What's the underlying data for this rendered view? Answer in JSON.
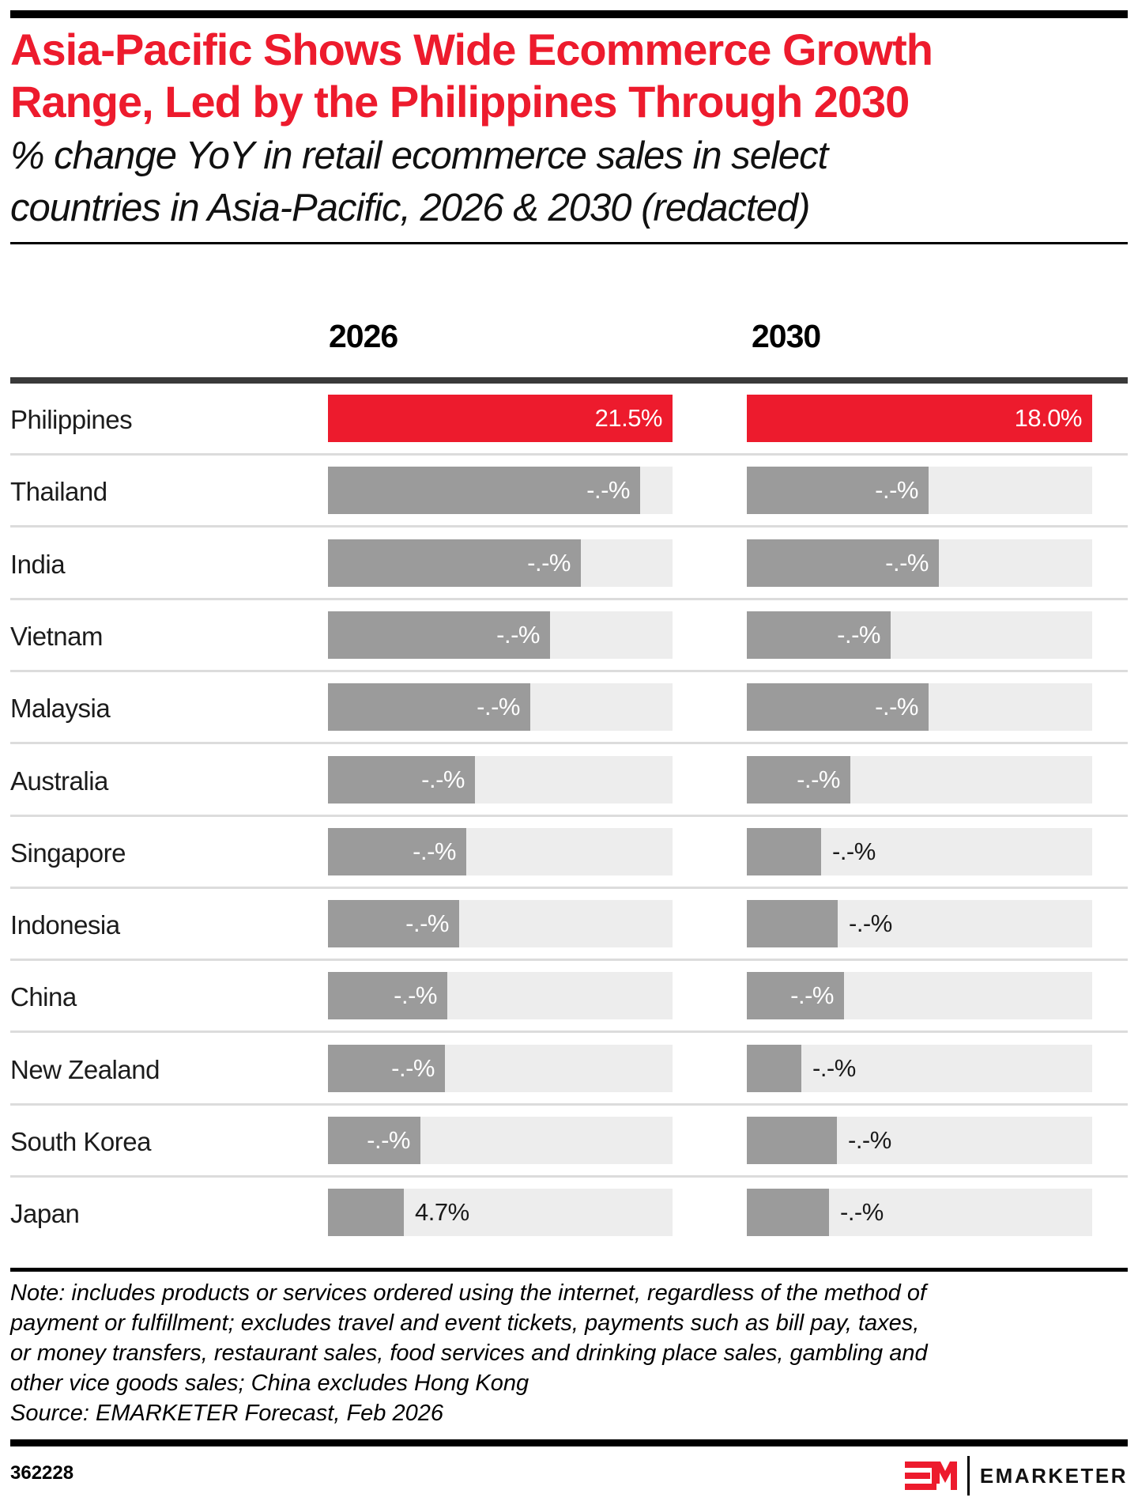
{
  "colors": {
    "accent_red": "#ed1b2d",
    "bar_gray": "#9b9b9b",
    "track_gray": "#ededed",
    "divider_gray": "#dcdcdc",
    "table_rule": "#3a3a3a",
    "black": "#000000"
  },
  "chart_data": {
    "type": "bar",
    "orientation": "horizontal",
    "title_lines": [
      "Asia-Pacific Shows Wide Ecommerce Growth",
      "Range, Led by the Philippines Through 2030"
    ],
    "subtitle_lines": [
      "% change YoY in retail ecommerce sales in select",
      "countries in Asia-Pacific, 2026 & 2030 (redacted)"
    ],
    "columns": [
      "2026",
      "2030"
    ],
    "redacted_label": "-.-%",
    "legend": "none",
    "note": "most values are redacted; bar_fraction is the bar length relative to the full column track (Philippines fills the track in both columns)",
    "rows": [
      {
        "country": "Philippines",
        "y2026": {
          "label": "21.5%",
          "value": 21.5,
          "bar_fraction": 1.0,
          "highlight": true,
          "label_inside": true
        },
        "y2030": {
          "label": "18.0%",
          "value": 18.0,
          "bar_fraction": 1.0,
          "highlight": true,
          "label_inside": true
        }
      },
      {
        "country": "Thailand",
        "y2026": {
          "label": "-.-%",
          "value": null,
          "bar_fraction": 0.906,
          "highlight": false,
          "label_inside": true
        },
        "y2030": {
          "label": "-.-%",
          "value": null,
          "bar_fraction": 0.526,
          "highlight": false,
          "label_inside": true
        }
      },
      {
        "country": "India",
        "y2026": {
          "label": "-.-%",
          "value": null,
          "bar_fraction": 0.734,
          "highlight": false,
          "label_inside": true
        },
        "y2030": {
          "label": "-.-%",
          "value": null,
          "bar_fraction": 0.556,
          "highlight": false,
          "label_inside": true
        }
      },
      {
        "country": "Vietnam",
        "y2026": {
          "label": "-.-%",
          "value": null,
          "bar_fraction": 0.645,
          "highlight": false,
          "label_inside": true
        },
        "y2030": {
          "label": "-.-%",
          "value": null,
          "bar_fraction": 0.416,
          "highlight": false,
          "label_inside": true
        }
      },
      {
        "country": "Malaysia",
        "y2026": {
          "label": "-.-%",
          "value": null,
          "bar_fraction": 0.587,
          "highlight": false,
          "label_inside": true
        },
        "y2030": {
          "label": "-.-%",
          "value": null,
          "bar_fraction": 0.526,
          "highlight": false,
          "label_inside": true
        }
      },
      {
        "country": "Australia",
        "y2026": {
          "label": "-.-%",
          "value": null,
          "bar_fraction": 0.427,
          "highlight": false,
          "label_inside": true
        },
        "y2030": {
          "label": "-.-%",
          "value": null,
          "bar_fraction": 0.3,
          "highlight": false,
          "label_inside": true
        }
      },
      {
        "country": "Singapore",
        "y2026": {
          "label": "-.-%",
          "value": null,
          "bar_fraction": 0.401,
          "highlight": false,
          "label_inside": true
        },
        "y2030": {
          "label": "-.-%",
          "value": null,
          "bar_fraction": 0.215,
          "highlight": false,
          "label_inside": false
        }
      },
      {
        "country": "Indonesia",
        "y2026": {
          "label": "-.-%",
          "value": null,
          "bar_fraction": 0.381,
          "highlight": false,
          "label_inside": true
        },
        "y2030": {
          "label": "-.-%",
          "value": null,
          "bar_fraction": 0.263,
          "highlight": false,
          "label_inside": false
        }
      },
      {
        "country": "China",
        "y2026": {
          "label": "-.-%",
          "value": null,
          "bar_fraction": 0.346,
          "highlight": false,
          "label_inside": true
        },
        "y2030": {
          "label": "-.-%",
          "value": null,
          "bar_fraction": 0.281,
          "highlight": false,
          "label_inside": true
        }
      },
      {
        "country": "New Zealand",
        "y2026": {
          "label": "-.-%",
          "value": null,
          "bar_fraction": 0.339,
          "highlight": false,
          "label_inside": true
        },
        "y2030": {
          "label": "-.-%",
          "value": null,
          "bar_fraction": 0.158,
          "highlight": false,
          "label_inside": false
        }
      },
      {
        "country": "South Korea",
        "y2026": {
          "label": "-.-%",
          "value": null,
          "bar_fraction": 0.268,
          "highlight": false,
          "label_inside": true
        },
        "y2030": {
          "label": "-.-%",
          "value": null,
          "bar_fraction": 0.26,
          "highlight": false,
          "label_inside": false
        }
      },
      {
        "country": "Japan",
        "y2026": {
          "label": "4.7%",
          "value": 4.7,
          "bar_fraction": 0.22,
          "highlight": false,
          "label_inside": false
        },
        "y2030": {
          "label": "-.-%",
          "value": null,
          "bar_fraction": 0.238,
          "highlight": false,
          "label_inside": false
        }
      }
    ]
  },
  "footnote": {
    "note_lines": [
      "Note: includes products or services ordered using the internet, regardless of the method of",
      "payment or fulfillment; excludes travel and event tickets, payments such as bill pay, taxes,",
      "or money transfers, restaurant sales, food services and drinking place sales, gambling and",
      "other vice goods sales; China excludes Hong Kong"
    ],
    "source_line": "Source: EMARKETER Forecast, Feb 2026"
  },
  "footer": {
    "chart_id": "362228",
    "brand_name": "EMARKETER"
  }
}
